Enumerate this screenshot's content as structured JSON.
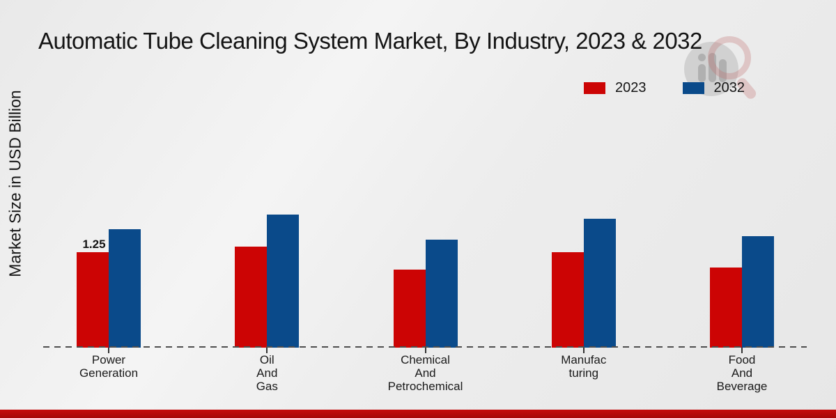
{
  "title": "Automatic Tube Cleaning System Market, By Industry, 2023 & 2032",
  "y_axis_label": "Market Size in USD Billion",
  "legend": [
    {
      "label": "2023",
      "color": "#cc0404"
    },
    {
      "label": "2032",
      "color": "#0a4a8a"
    }
  ],
  "chart_data": {
    "type": "bar",
    "categories": [
      "Power Generation",
      "Oil And Gas",
      "Chemical And Petrochemical",
      "Manufacturing",
      "Food And Beverage"
    ],
    "category_lines": [
      [
        "Power",
        "Generation"
      ],
      [
        "Oil",
        "And",
        "Gas"
      ],
      [
        "Chemical",
        "And",
        "Petrochemical"
      ],
      [
        "Manufac",
        "turing"
      ],
      [
        "Food",
        "And",
        "Beverage"
      ]
    ],
    "series": [
      {
        "name": "2023",
        "color": "#cc0404",
        "values": [
          1.25,
          1.32,
          1.02,
          1.25,
          1.05
        ],
        "labels": [
          "1.25",
          "",
          "",
          "",
          ""
        ]
      },
      {
        "name": "2032",
        "color": "#0a4a8a",
        "values": [
          1.55,
          1.74,
          1.41,
          1.69,
          1.46
        ],
        "labels": [
          "",
          "",
          "",
          "",
          ""
        ]
      }
    ],
    "title": "Automatic Tube Cleaning System Market, By Industry, 2023 & 2032",
    "xlabel": "",
    "ylabel": "Market Size in USD Billion",
    "ylim": [
      0,
      2.2
    ],
    "grid": false,
    "legend_position": "top-right",
    "baseline_style": "dashed"
  },
  "colors": {
    "footer_bar": "#b50909",
    "background": "#ededed"
  }
}
